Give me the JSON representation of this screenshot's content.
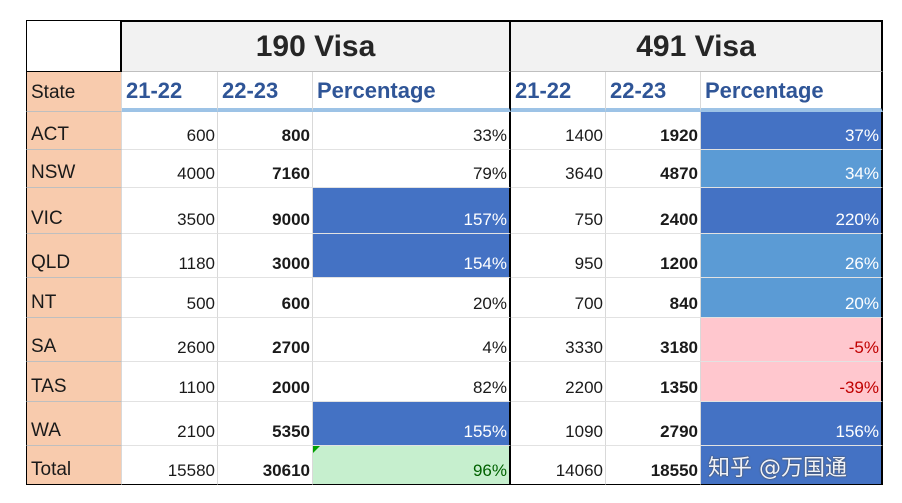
{
  "groups": {
    "g190": "190 Visa",
    "g491": "491 Visa"
  },
  "headers": {
    "state": "State",
    "y1": "21-22",
    "y2": "22-23",
    "pct": "Percentage",
    "y1b": "21-22",
    "y2b": "22-23",
    "pctb": "Percentage"
  },
  "rows": [
    {
      "state": "ACT",
      "a1": "600",
      "a2": "800",
      "ap": "33%",
      "b1": "1400",
      "b2": "1920",
      "bp": "37%"
    },
    {
      "state": "NSW",
      "a1": "4000",
      "a2": "7160",
      "ap": "79%",
      "b1": "3640",
      "b2": "4870",
      "bp": "34%"
    },
    {
      "state": "VIC",
      "a1": "3500",
      "a2": "9000",
      "ap": "157%",
      "b1": "750",
      "b2": "2400",
      "bp": "220%"
    },
    {
      "state": "QLD",
      "a1": "1180",
      "a2": "3000",
      "ap": "154%",
      "b1": "950",
      "b2": "1200",
      "bp": "26%"
    },
    {
      "state": "NT",
      "a1": "500",
      "a2": "600",
      "ap": "20%",
      "b1": "700",
      "b2": "840",
      "bp": "20%"
    },
    {
      "state": "SA",
      "a1": "2600",
      "a2": "2700",
      "ap": "4%",
      "b1": "3330",
      "b2": "3180",
      "bp": "-5%"
    },
    {
      "state": "TAS",
      "a1": "1100",
      "a2": "2000",
      "ap": "82%",
      "b1": "2200",
      "b2": "1350",
      "bp": "-39%"
    },
    {
      "state": "WA",
      "a1": "2100",
      "a2": "5350",
      "ap": "155%",
      "b1": "1090",
      "b2": "2790",
      "bp": "156%"
    },
    {
      "state": "Total",
      "a1": "15580",
      "a2": "30610",
      "ap": "96%",
      "b1": "14060",
      "b2": "18550",
      "bp": ""
    }
  ],
  "highlights": {
    "ap": [
      "",
      "",
      "dark",
      "dark",
      "",
      "",
      "",
      "dark",
      "green"
    ],
    "bp": [
      "dark",
      "mid",
      "dark",
      "mid",
      "mid",
      "pink",
      "pink",
      "dark",
      "dark"
    ]
  },
  "colors": {
    "state_fill": "#f8cbad",
    "header_text": "#2f5597",
    "dark_blue": "#4472c4",
    "mid_blue": "#5b9bd5",
    "negative_fill": "#ffc7ce",
    "positive_fill": "#c6efce"
  },
  "watermark": "知乎 @万国通"
}
